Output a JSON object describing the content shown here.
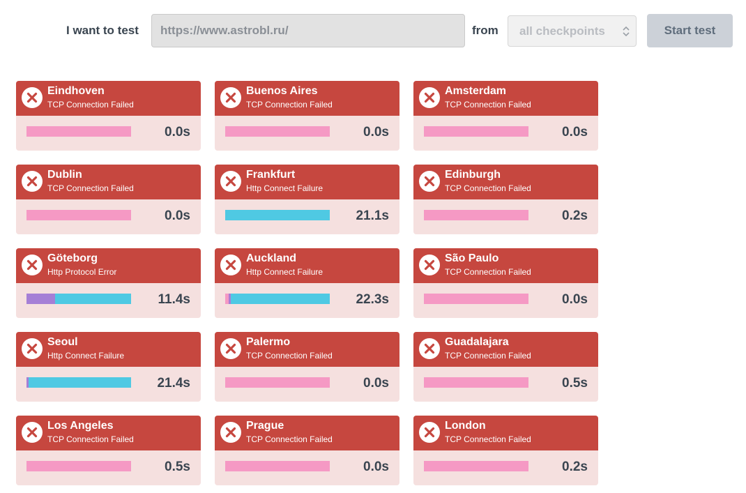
{
  "toolbar": {
    "label": "I want to test",
    "url": "https://www.astrobl.ru/",
    "from_label": "from",
    "checkpoint_select": "all checkpoints",
    "start_label": "Start test"
  },
  "colors": {
    "header": "#c6473f",
    "body": "#f5e0df",
    "connect": "#f599c4",
    "wait": "#4fc9e3",
    "dns": "#a57fd6"
  },
  "results": [
    {
      "city": "Eindhoven",
      "status": "TCP Connection Failed",
      "time": "0.0s",
      "bar": [
        {
          "phase": "connect",
          "fraction": 1.0
        }
      ]
    },
    {
      "city": "Buenos Aires",
      "status": "TCP Connection Failed",
      "time": "0.0s",
      "bar": [
        {
          "phase": "connect",
          "fraction": 1.0
        }
      ]
    },
    {
      "city": "Amsterdam",
      "status": "TCP Connection Failed",
      "time": "0.0s",
      "bar": [
        {
          "phase": "connect",
          "fraction": 1.0
        }
      ]
    },
    {
      "city": "Dublin",
      "status": "TCP Connection Failed",
      "time": "0.0s",
      "bar": [
        {
          "phase": "connect",
          "fraction": 1.0
        }
      ]
    },
    {
      "city": "Frankfurt",
      "status": "Http Connect Failure",
      "time": "21.1s",
      "bar": [
        {
          "phase": "wait",
          "fraction": 1.0
        }
      ]
    },
    {
      "city": "Edinburgh",
      "status": "TCP Connection Failed",
      "time": "0.2s",
      "bar": [
        {
          "phase": "connect",
          "fraction": 1.0
        }
      ]
    },
    {
      "city": "Göteborg",
      "status": "Http Protocol Error",
      "time": "11.4s",
      "bar": [
        {
          "phase": "dns",
          "fraction": 0.27
        },
        {
          "phase": "wait",
          "fraction": 0.73
        }
      ]
    },
    {
      "city": "Auckland",
      "status": "Http Connect Failure",
      "time": "22.3s",
      "bar": [
        {
          "phase": "connect",
          "fraction": 0.03
        },
        {
          "phase": "dns",
          "fraction": 0.02
        },
        {
          "phase": "wait",
          "fraction": 0.95
        }
      ]
    },
    {
      "city": "São Paulo",
      "status": "TCP Connection Failed",
      "time": "0.0s",
      "bar": [
        {
          "phase": "connect",
          "fraction": 1.0
        }
      ]
    },
    {
      "city": "Seoul",
      "status": "Http Connect Failure",
      "time": "21.4s",
      "bar": [
        {
          "phase": "dns",
          "fraction": 0.02
        },
        {
          "phase": "wait",
          "fraction": 0.98
        }
      ]
    },
    {
      "city": "Palermo",
      "status": "TCP Connection Failed",
      "time": "0.0s",
      "bar": [
        {
          "phase": "connect",
          "fraction": 1.0
        }
      ]
    },
    {
      "city": "Guadalajara",
      "status": "TCP Connection Failed",
      "time": "0.5s",
      "bar": [
        {
          "phase": "connect",
          "fraction": 1.0
        }
      ]
    },
    {
      "city": "Los Angeles",
      "status": "TCP Connection Failed",
      "time": "0.5s",
      "bar": [
        {
          "phase": "connect",
          "fraction": 1.0
        }
      ]
    },
    {
      "city": "Prague",
      "status": "TCP Connection Failed",
      "time": "0.0s",
      "bar": [
        {
          "phase": "connect",
          "fraction": 1.0
        }
      ]
    },
    {
      "city": "London",
      "status": "TCP Connection Failed",
      "time": "0.2s",
      "bar": [
        {
          "phase": "connect",
          "fraction": 1.0
        }
      ]
    }
  ]
}
